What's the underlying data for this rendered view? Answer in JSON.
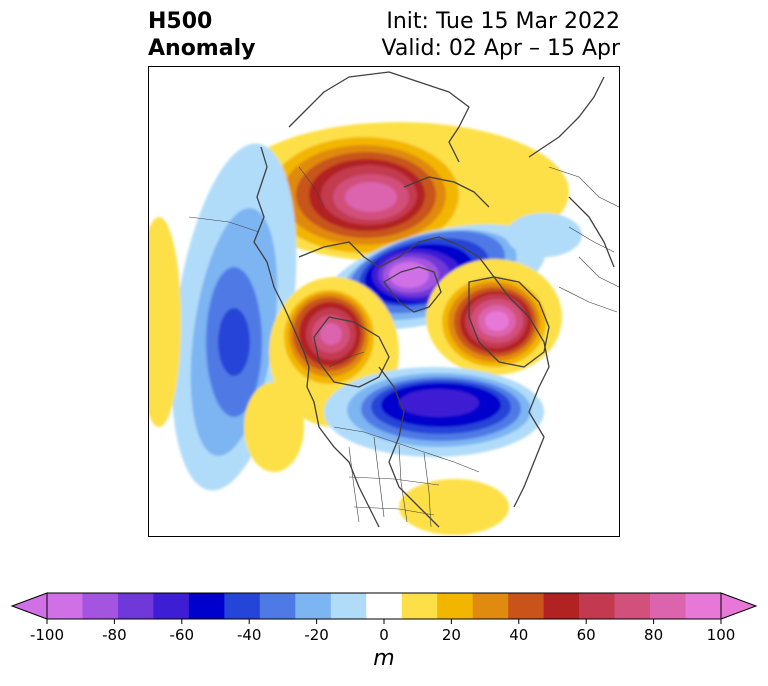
{
  "title": {
    "variable": "H500",
    "subtitle": "Anomaly",
    "init": "Init: Tue 15 Mar 2022",
    "valid": "Valid: 02 Apr – 15 Apr"
  },
  "colorbar": {
    "unit": "m",
    "levels": [
      -100,
      -90,
      -80,
      -70,
      -60,
      -50,
      -40,
      -30,
      -20,
      -10,
      10,
      20,
      30,
      40,
      50,
      60,
      70,
      80,
      90,
      100
    ],
    "tick_values": [
      -100,
      -80,
      -60,
      -40,
      -20,
      0,
      20,
      40,
      60,
      80,
      100
    ],
    "tick_labels": [
      "-100",
      "-80",
      "-60",
      "-40",
      "-20",
      "0",
      "20",
      "40",
      "60",
      "80",
      "100"
    ],
    "colors": [
      "#d070e6",
      "#a355e0",
      "#7038d8",
      "#3d1ed4",
      "#0000cc",
      "#2545d8",
      "#4f7ae6",
      "#7db4f2",
      "#b0dcfa",
      "#ffffff",
      "#fde047",
      "#f3b600",
      "#e08a0f",
      "#c8541a",
      "#b22222",
      "#c33a50",
      "#d2507c",
      "#dc64ad",
      "#e878d8"
    ],
    "extend_low_color": "#d070e6",
    "extend_high_color": "#e878d8"
  },
  "anomalies": [
    {
      "label": "ridge-north-canada",
      "value": 85
    },
    {
      "label": "trough-hudson-bay",
      "value": -95
    },
    {
      "label": "ridge-alaska",
      "value": 80
    },
    {
      "label": "ridge-greenland",
      "value": 85
    },
    {
      "label": "trough-eastern-us",
      "value": -75
    },
    {
      "label": "trough-north-pacific",
      "value": -55
    },
    {
      "label": "ridge-west-atlantic",
      "value": 15
    }
  ]
}
